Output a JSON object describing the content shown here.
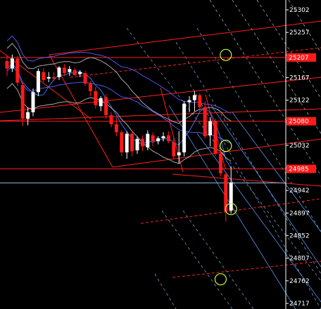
{
  "chart_data": {
    "type": "candlestick",
    "y_axis": {
      "ticks": [
        25302,
        25257,
        25212,
        25167,
        25122,
        25077,
        25032,
        24987,
        24942,
        24897,
        24852,
        24807,
        24762,
        24717
      ],
      "tick_labels": [
        "25302",
        "25257",
        "",
        "25167",
        "25122",
        "",
        "25032",
        "",
        "24942",
        "24897",
        "24852",
        "24807",
        "24762",
        "24717"
      ],
      "range": [
        24710,
        25315
      ],
      "position": "right"
    },
    "price_level_labels": [
      {
        "label": "25207",
        "value": 25207
      },
      {
        "label": "25080",
        "value": 25080
      },
      {
        "label": "24985",
        "value": 24985
      }
    ],
    "current_price_line": 24957,
    "candles": [
      {
        "i": 0,
        "o": 25200,
        "h": 25212,
        "l": 25170,
        "c": 25185
      },
      {
        "i": 1,
        "o": 25185,
        "h": 25213,
        "l": 25178,
        "c": 25205
      },
      {
        "i": 2,
        "o": 25205,
        "h": 25210,
        "l": 25150,
        "c": 25157
      },
      {
        "i": 3,
        "o": 25152,
        "h": 25160,
        "l": 25070,
        "c": 25085
      },
      {
        "i": 4,
        "o": 25085,
        "h": 25108,
        "l": 25072,
        "c": 25098
      },
      {
        "i": 5,
        "o": 25098,
        "h": 25145,
        "l": 25090,
        "c": 25138
      },
      {
        "i": 6,
        "o": 25138,
        "h": 25185,
        "l": 25130,
        "c": 25180
      },
      {
        "i": 7,
        "o": 25178,
        "h": 25186,
        "l": 25158,
        "c": 25162
      },
      {
        "i": 8,
        "o": 25165,
        "h": 25178,
        "l": 25158,
        "c": 25168
      },
      {
        "i": 9,
        "o": 25168,
        "h": 25178,
        "l": 25160,
        "c": 25165
      },
      {
        "i": 10,
        "o": 25168,
        "h": 25190,
        "l": 25162,
        "c": 25187
      },
      {
        "i": 11,
        "o": 25187,
        "h": 25194,
        "l": 25170,
        "c": 25176
      },
      {
        "i": 12,
        "o": 25178,
        "h": 25190,
        "l": 25170,
        "c": 25184
      },
      {
        "i": 13,
        "o": 25182,
        "h": 25186,
        "l": 25170,
        "c": 25172
      },
      {
        "i": 14,
        "o": 25174,
        "h": 25182,
        "l": 25168,
        "c": 25178
      },
      {
        "i": 15,
        "o": 25176,
        "h": 25180,
        "l": 25150,
        "c": 25155
      },
      {
        "i": 16,
        "o": 25155,
        "h": 25160,
        "l": 25130,
        "c": 25140
      },
      {
        "i": 17,
        "o": 25140,
        "h": 25148,
        "l": 25105,
        "c": 25112
      },
      {
        "i": 18,
        "o": 25110,
        "h": 25130,
        "l": 25100,
        "c": 25126
      },
      {
        "i": 19,
        "o": 25128,
        "h": 25134,
        "l": 25085,
        "c": 25092
      },
      {
        "i": 20,
        "o": 25092,
        "h": 25098,
        "l": 25068,
        "c": 25074
      },
      {
        "i": 21,
        "o": 25074,
        "h": 25088,
        "l": 25050,
        "c": 25058
      },
      {
        "i": 22,
        "o": 25058,
        "h": 25062,
        "l": 25010,
        "c": 25018
      },
      {
        "i": 23,
        "o": 25018,
        "h": 25060,
        "l": 25005,
        "c": 25055
      },
      {
        "i": 24,
        "o": 25055,
        "h": 25062,
        "l": 25010,
        "c": 25020
      },
      {
        "i": 25,
        "o": 25022,
        "h": 25050,
        "l": 25015,
        "c": 25045
      },
      {
        "i": 26,
        "o": 25045,
        "h": 25052,
        "l": 25020,
        "c": 25030
      },
      {
        "i": 27,
        "o": 25028,
        "h": 25062,
        "l": 25022,
        "c": 25055
      },
      {
        "i": 28,
        "o": 25052,
        "h": 25058,
        "l": 25030,
        "c": 25040
      },
      {
        "i": 29,
        "o": 25040,
        "h": 25050,
        "l": 25034,
        "c": 25046
      },
      {
        "i": 30,
        "o": 25046,
        "h": 25058,
        "l": 25040,
        "c": 25050
      },
      {
        "i": 31,
        "o": 25052,
        "h": 25060,
        "l": 25036,
        "c": 25040
      },
      {
        "i": 32,
        "o": 25038,
        "h": 25048,
        "l": 25005,
        "c": 25010
      },
      {
        "i": 33,
        "o": 25012,
        "h": 25060,
        "l": 24995,
        "c": 25018
      },
      {
        "i": 34,
        "o": 25018,
        "h": 25120,
        "l": 25010,
        "c": 25115
      },
      {
        "i": 35,
        "o": 25118,
        "h": 25130,
        "l": 25098,
        "c": 25122
      },
      {
        "i": 36,
        "o": 25122,
        "h": 25140,
        "l": 25100,
        "c": 25132
      },
      {
        "i": 37,
        "o": 25132,
        "h": 25136,
        "l": 25100,
        "c": 25108
      },
      {
        "i": 38,
        "o": 25108,
        "h": 25120,
        "l": 25045,
        "c": 25050
      },
      {
        "i": 39,
        "o": 25052,
        "h": 25088,
        "l": 25030,
        "c": 25080
      },
      {
        "i": 40,
        "o": 25080,
        "h": 25085,
        "l": 25010,
        "c": 25015
      },
      {
        "i": 41,
        "o": 25015,
        "h": 25020,
        "l": 24970,
        "c": 24976
      },
      {
        "i": 42,
        "o": 24974,
        "h": 24980,
        "l": 24880,
        "c": 24900
      },
      {
        "i": 43,
        "o": 24902,
        "h": 24990,
        "l": 24896,
        "c": 24958
      }
    ]
  }
}
